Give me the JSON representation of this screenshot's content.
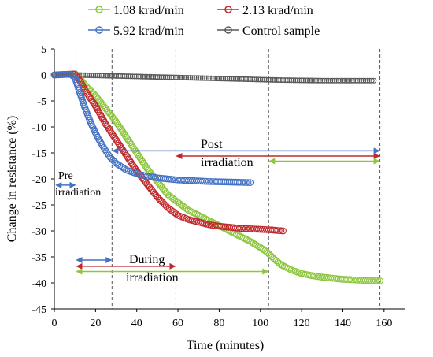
{
  "chart_data": {
    "type": "scatter",
    "xlabel": "Time (minutes)",
    "ylabel": "Change in resistance (%)",
    "xlim": [
      0,
      170
    ],
    "ylim": [
      -45,
      5
    ],
    "xticks": [
      0,
      20,
      40,
      60,
      80,
      100,
      120,
      140,
      160
    ],
    "yticks": [
      5,
      0,
      -5,
      -10,
      -15,
      -20,
      -25,
      -30,
      -35,
      -40,
      -45
    ],
    "grid": false,
    "legend_position": "top",
    "series": [
      {
        "name": "1.08 krad/min",
        "color": "#8dc63f",
        "marker": "open-circle",
        "points": [
          [
            0,
            0
          ],
          [
            5,
            0.1
          ],
          [
            10,
            0.2
          ],
          [
            12,
            -0.5
          ],
          [
            15,
            -2
          ],
          [
            20,
            -4
          ],
          [
            25,
            -6.5
          ],
          [
            30,
            -9
          ],
          [
            35,
            -12
          ],
          [
            40,
            -15
          ],
          [
            45,
            -18
          ],
          [
            50,
            -20.5
          ],
          [
            55,
            -23
          ],
          [
            60,
            -24.5
          ],
          [
            65,
            -26
          ],
          [
            70,
            -27
          ],
          [
            75,
            -28
          ],
          [
            80,
            -29
          ],
          [
            85,
            -30
          ],
          [
            90,
            -31
          ],
          [
            95,
            -32
          ],
          [
            100,
            -33.2
          ],
          [
            103,
            -34
          ],
          [
            107,
            -35.5
          ],
          [
            110,
            -36.5
          ],
          [
            115,
            -37.5
          ],
          [
            120,
            -38.2
          ],
          [
            125,
            -38.6
          ],
          [
            130,
            -38.9
          ],
          [
            135,
            -39.1
          ],
          [
            140,
            -39.3
          ],
          [
            145,
            -39.4
          ],
          [
            150,
            -39.5
          ],
          [
            155,
            -39.6
          ],
          [
            158,
            -39.6
          ]
        ]
      },
      {
        "name": "2.13 krad/min",
        "color": "#c0282d",
        "marker": "open-circle",
        "points": [
          [
            0,
            0
          ],
          [
            5,
            0.1
          ],
          [
            10,
            0.2
          ],
          [
            12,
            -0.8
          ],
          [
            15,
            -3
          ],
          [
            20,
            -6
          ],
          [
            25,
            -9.5
          ],
          [
            30,
            -12.5
          ],
          [
            35,
            -15.5
          ],
          [
            40,
            -18.5
          ],
          [
            45,
            -21
          ],
          [
            50,
            -23.5
          ],
          [
            55,
            -25.5
          ],
          [
            60,
            -27
          ],
          [
            65,
            -27.8
          ],
          [
            70,
            -28.3
          ],
          [
            75,
            -28.8
          ],
          [
            80,
            -29.1
          ],
          [
            85,
            -29.3
          ],
          [
            90,
            -29.5
          ],
          [
            95,
            -29.6
          ],
          [
            100,
            -29.7
          ],
          [
            105,
            -29.8
          ],
          [
            108,
            -29.9
          ],
          [
            111,
            -30
          ]
        ]
      },
      {
        "name": "5.92 krad/min",
        "color": "#4472c4",
        "marker": "open-circle",
        "points": [
          [
            0,
            0
          ],
          [
            4,
            0.1
          ],
          [
            8,
            0.1
          ],
          [
            10,
            -0.5
          ],
          [
            12,
            -3
          ],
          [
            15,
            -6.5
          ],
          [
            18,
            -9.5
          ],
          [
            21,
            -12
          ],
          [
            24,
            -14
          ],
          [
            27,
            -15.8
          ],
          [
            30,
            -17
          ],
          [
            35,
            -18.3
          ],
          [
            40,
            -19
          ],
          [
            45,
            -19.5
          ],
          [
            50,
            -19.8
          ],
          [
            55,
            -20
          ],
          [
            60,
            -20.2
          ],
          [
            65,
            -20.3
          ],
          [
            70,
            -20.4
          ],
          [
            75,
            -20.5
          ],
          [
            80,
            -20.55
          ],
          [
            85,
            -20.6
          ],
          [
            90,
            -20.65
          ],
          [
            95,
            -20.7
          ]
        ]
      },
      {
        "name": "Control sample",
        "color": "#595959",
        "marker": "open-circle",
        "points": [
          [
            0,
            0
          ],
          [
            10,
            0
          ],
          [
            20,
            -0.1
          ],
          [
            30,
            -0.2
          ],
          [
            40,
            -0.3
          ],
          [
            50,
            -0.4
          ],
          [
            60,
            -0.5
          ],
          [
            70,
            -0.6
          ],
          [
            80,
            -0.7
          ],
          [
            90,
            -0.8
          ],
          [
            100,
            -0.9
          ],
          [
            110,
            -1
          ],
          [
            120,
            -1.05
          ],
          [
            130,
            -1.1
          ],
          [
            140,
            -1.1
          ],
          [
            150,
            -1.1
          ],
          [
            155,
            -1.1
          ]
        ]
      }
    ],
    "vlines": [
      10.5,
      28,
      59,
      104,
      158
    ],
    "annotations": {
      "pre": [
        "Pre",
        "irradiation"
      ],
      "during": [
        "During",
        "irradiation"
      ],
      "post": [
        "Post",
        "irradiation"
      ]
    }
  }
}
